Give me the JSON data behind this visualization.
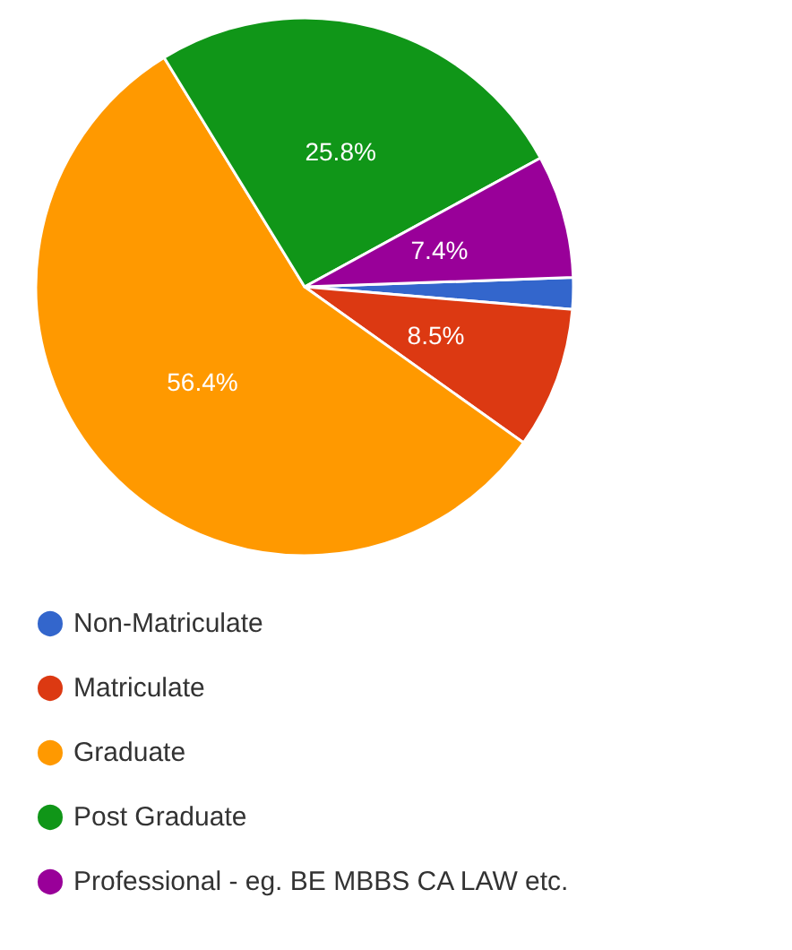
{
  "chart_data": {
    "type": "pie",
    "categories": [
      "Non-Matriculate",
      "Matriculate",
      "Graduate",
      "Post Graduate",
      "Professional - eg. BE MBBS CA LAW etc."
    ],
    "values": [
      1.9,
      8.5,
      56.4,
      25.8,
      7.4
    ],
    "colors": [
      "#3366cc",
      "#dc3912",
      "#ff9900",
      "#109618",
      "#990099"
    ],
    "value_labels": [
      null,
      "8.5%",
      "56.4%",
      "25.8%",
      "7.4%"
    ],
    "legend": "bottom"
  }
}
